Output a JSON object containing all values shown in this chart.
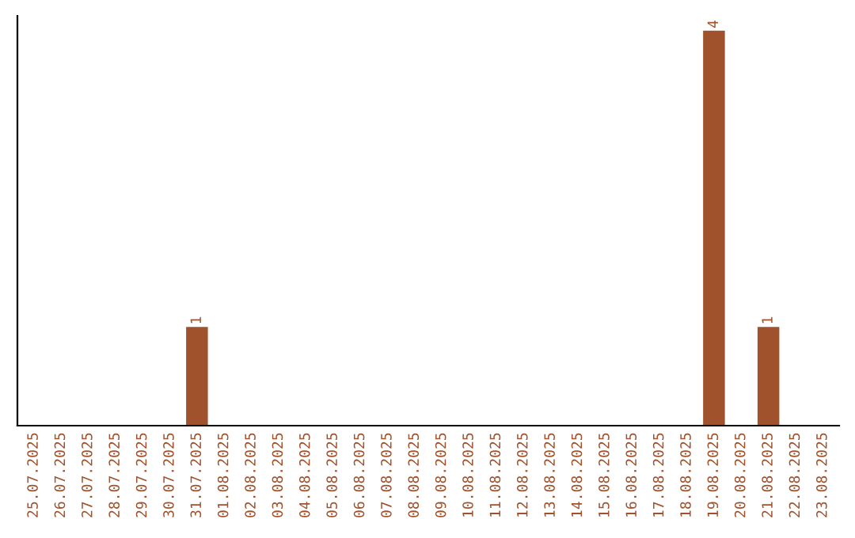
{
  "chart_data": {
    "type": "bar",
    "categories": [
      "25.07.2025",
      "26.07.2025",
      "27.07.2025",
      "28.07.2025",
      "29.07.2025",
      "30.07.2025",
      "31.07.2025",
      "01.08.2025",
      "02.08.2025",
      "03.08.2025",
      "04.08.2025",
      "05.08.2025",
      "06.08.2025",
      "07.08.2025",
      "08.08.2025",
      "09.08.2025",
      "10.08.2025",
      "11.08.2025",
      "12.08.2025",
      "13.08.2025",
      "14.08.2025",
      "15.08.2025",
      "16.08.2025",
      "17.08.2025",
      "18.08.2025",
      "19.08.2025",
      "20.08.2025",
      "21.08.2025",
      "22.08.2025",
      "23.08.2025"
    ],
    "values": [
      0,
      0,
      0,
      0,
      0,
      0,
      1,
      0,
      0,
      0,
      0,
      0,
      0,
      0,
      0,
      0,
      0,
      0,
      0,
      0,
      0,
      0,
      0,
      0,
      0,
      4,
      0,
      1,
      0,
      0
    ],
    "value_labels": [
      null,
      null,
      null,
      null,
      null,
      null,
      "1",
      null,
      null,
      null,
      null,
      null,
      null,
      null,
      null,
      null,
      null,
      null,
      null,
      null,
      null,
      null,
      null,
      null,
      null,
      "4",
      null,
      "1",
      null,
      null
    ],
    "color": "#a0522d",
    "ylim": [
      0,
      4.15
    ],
    "tick_labels": "x",
    "grid": false,
    "legend": false
  }
}
